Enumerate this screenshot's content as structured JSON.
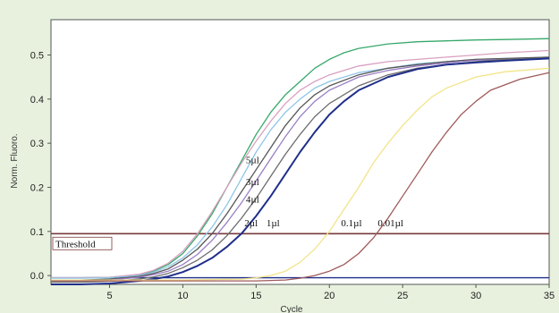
{
  "chart_data": {
    "type": "line",
    "title": "",
    "xlabel": "Cycle",
    "ylabel": "Norm. Fluoro.",
    "xlim": [
      1,
      35
    ],
    "ylim": [
      -0.02,
      0.58
    ],
    "xticks": [
      5,
      10,
      15,
      20,
      25,
      30,
      35
    ],
    "yticks": [
      0.0,
      0.1,
      0.2,
      0.3,
      0.4,
      0.5
    ],
    "ytick_labels": [
      "0.0",
      "0.1",
      "0.2",
      "0.3",
      "0.4",
      "0.5"
    ],
    "grid": false,
    "threshold": {
      "label": "Threshold",
      "value": 0.095,
      "color": "#7a3b3b"
    },
    "baseline": {
      "value": -0.005,
      "color": "#1f2f8a"
    },
    "annotations": [
      {
        "text": "5µl",
        "x": 14.3,
        "y": 0.255
      },
      {
        "text": "3µl",
        "x": 14.3,
        "y": 0.205
      },
      {
        "text": "4µl",
        "x": 14.3,
        "y": 0.165
      },
      {
        "text": "2µl",
        "x": 14.2,
        "y": 0.112
      },
      {
        "text": "1µl",
        "x": 15.7,
        "y": 0.112
      },
      {
        "text": "0.1µl",
        "x": 20.8,
        "y": 0.112
      },
      {
        "text": "0.01µl",
        "x": 23.3,
        "y": 0.112
      }
    ],
    "series": [
      {
        "color": "#36a86a",
        "x": [
          1,
          3,
          5,
          7,
          8,
          9,
          10,
          11,
          12,
          13,
          14,
          15,
          16,
          17,
          18,
          19,
          20,
          21,
          22,
          24,
          26,
          28,
          30,
          32,
          35
        ],
        "y": [
          -0.005,
          -0.005,
          -0.004,
          0.002,
          0.01,
          0.025,
          0.05,
          0.09,
          0.14,
          0.2,
          0.26,
          0.32,
          0.37,
          0.41,
          0.44,
          0.47,
          0.49,
          0.505,
          0.515,
          0.525,
          0.53,
          0.532,
          0.534,
          0.535,
          0.537
        ]
      },
      {
        "color": "#d9a0c0",
        "x": [
          1,
          3,
          5,
          7,
          8,
          9,
          10,
          11,
          12,
          13,
          14,
          15,
          16,
          17,
          18,
          19,
          20,
          22,
          24,
          26,
          28,
          30,
          32,
          35
        ],
        "y": [
          -0.005,
          -0.005,
          -0.004,
          0.003,
          0.012,
          0.028,
          0.055,
          0.095,
          0.145,
          0.2,
          0.255,
          0.305,
          0.35,
          0.39,
          0.42,
          0.44,
          0.455,
          0.475,
          0.485,
          0.49,
          0.495,
          0.5,
          0.505,
          0.51
        ]
      },
      {
        "color": "#8ec6e8",
        "x": [
          1,
          3,
          5,
          7,
          8,
          9,
          10,
          11,
          12,
          13,
          14,
          15,
          16,
          17,
          18,
          19,
          20,
          22,
          24,
          26,
          28,
          30,
          32,
          35
        ],
        "y": [
          -0.006,
          -0.006,
          -0.005,
          0.0,
          0.008,
          0.02,
          0.04,
          0.07,
          0.11,
          0.16,
          0.22,
          0.28,
          0.33,
          0.37,
          0.4,
          0.425,
          0.44,
          0.46,
          0.47,
          0.48,
          0.485,
          0.49,
          0.492,
          0.495
        ]
      },
      {
        "color": "#555555",
        "x": [
          1,
          3,
          5,
          7,
          8,
          9,
          10,
          11,
          12,
          13,
          14,
          15,
          16,
          17,
          18,
          19,
          20,
          22,
          24,
          26,
          28,
          30,
          32,
          35
        ],
        "y": [
          -0.01,
          -0.01,
          -0.008,
          -0.002,
          0.005,
          0.015,
          0.035,
          0.06,
          0.095,
          0.14,
          0.19,
          0.24,
          0.29,
          0.34,
          0.38,
          0.41,
          0.43,
          0.455,
          0.47,
          0.478,
          0.485,
          0.49,
          0.492,
          0.495
        ]
      },
      {
        "color": "#9a7fc4",
        "x": [
          1,
          3,
          5,
          7,
          8,
          9,
          10,
          11,
          12,
          13,
          14,
          15,
          16,
          17,
          18,
          19,
          20,
          22,
          24,
          26,
          28,
          30,
          32,
          35
        ],
        "y": [
          -0.012,
          -0.012,
          -0.01,
          -0.004,
          0.002,
          0.01,
          0.025,
          0.048,
          0.08,
          0.12,
          0.165,
          0.215,
          0.265,
          0.315,
          0.36,
          0.395,
          0.42,
          0.45,
          0.465,
          0.475,
          0.482,
          0.488,
          0.49,
          0.492
        ]
      },
      {
        "color": "#6c6c6c",
        "x": [
          1,
          3,
          5,
          7,
          8,
          9,
          10,
          11,
          12,
          13,
          14,
          15,
          16,
          17,
          18,
          19,
          20,
          22,
          24,
          26,
          28,
          30,
          32,
          35
        ],
        "y": [
          -0.015,
          -0.015,
          -0.013,
          -0.008,
          -0.003,
          0.005,
          0.018,
          0.035,
          0.058,
          0.09,
          0.13,
          0.175,
          0.225,
          0.275,
          0.32,
          0.36,
          0.39,
          0.43,
          0.455,
          0.47,
          0.478,
          0.485,
          0.49,
          0.493
        ]
      },
      {
        "color": "#1f2f8a",
        "x": [
          1,
          3,
          5,
          7,
          8,
          9,
          10,
          11,
          12,
          13,
          14,
          15,
          16,
          17,
          18,
          19,
          20,
          21,
          22,
          24,
          26,
          28,
          30,
          32,
          35
        ],
        "y": [
          -0.02,
          -0.02,
          -0.018,
          -0.012,
          -0.008,
          -0.002,
          0.008,
          0.022,
          0.04,
          0.065,
          0.095,
          0.135,
          0.18,
          0.23,
          0.28,
          0.325,
          0.365,
          0.395,
          0.42,
          0.45,
          0.468,
          0.478,
          0.483,
          0.487,
          0.492
        ]
      },
      {
        "color": "#f2e48a",
        "x": [
          1,
          5,
          10,
          14,
          15,
          16,
          17,
          18,
          19,
          20,
          21,
          22,
          23,
          24,
          25,
          26,
          27,
          28,
          30,
          32,
          35
        ],
        "y": [
          -0.01,
          -0.01,
          -0.01,
          -0.008,
          -0.005,
          0.0,
          0.01,
          0.03,
          0.06,
          0.1,
          0.15,
          0.2,
          0.255,
          0.3,
          0.34,
          0.375,
          0.405,
          0.425,
          0.45,
          0.462,
          0.47
        ]
      },
      {
        "color": "#a05a5a",
        "x": [
          1,
          5,
          10,
          15,
          17,
          18,
          19,
          20,
          21,
          22,
          23,
          24,
          25,
          26,
          27,
          28,
          29,
          30,
          31,
          33,
          35
        ],
        "y": [
          -0.012,
          -0.012,
          -0.012,
          -0.012,
          -0.01,
          -0.006,
          0.0,
          0.01,
          0.025,
          0.05,
          0.085,
          0.13,
          0.18,
          0.23,
          0.28,
          0.325,
          0.365,
          0.395,
          0.42,
          0.445,
          0.46
        ]
      }
    ]
  }
}
